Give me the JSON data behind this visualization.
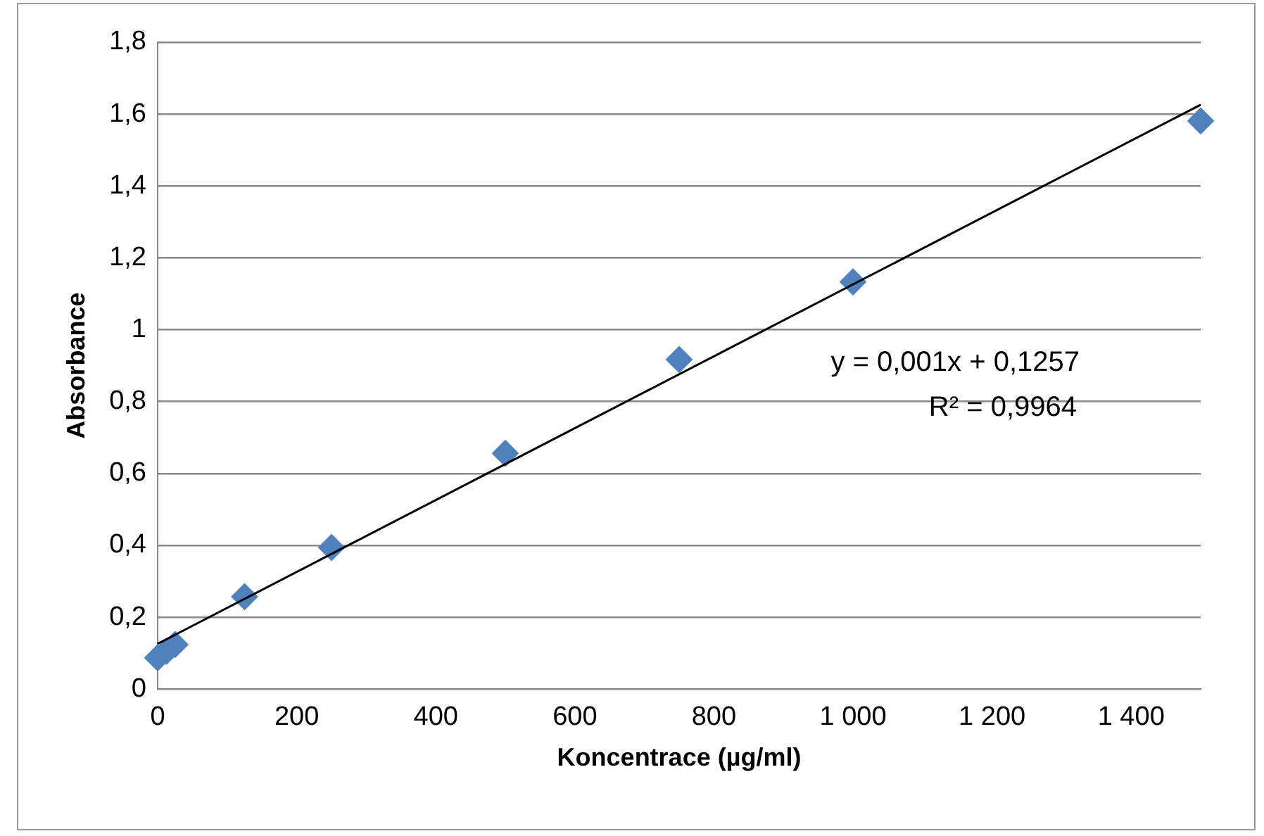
{
  "chart_data": {
    "type": "scatter",
    "xlabel": "Koncentrace (µg/ml)",
    "ylabel": "Absorbance",
    "series": [
      {
        "color": "#4f81bd",
        "marker": "diamond",
        "x": [
          0,
          12.5,
          25,
          125,
          250,
          500,
          750,
          1000,
          1500
        ],
        "values": [
          0.087,
          0.105,
          0.124,
          0.257,
          0.394,
          0.656,
          0.917,
          1.133,
          1.581
        ]
      },
      {
        "type": "line",
        "color": "#000000",
        "marker": "none",
        "x": [
          0,
          1500
        ],
        "values": [
          0.126,
          1.626
        ]
      }
    ],
    "xlim": [
      0,
      1500
    ],
    "xticks": [
      0,
      200,
      400,
      600,
      800,
      {
        "value": 1000,
        "label": "1 000"
      },
      {
        "value": 1200,
        "label": "1 200"
      },
      {
        "value": 1400,
        "label": "1 400"
      }
    ],
    "ylim": [
      0,
      1.8
    ],
    "yticks": [
      0,
      {
        "value": 0.2,
        "label": "0,2"
      },
      {
        "value": 0.4,
        "label": "0,4"
      },
      {
        "value": 0.6,
        "label": "0,6"
      },
      {
        "value": 0.8,
        "label": "0,8"
      },
      1,
      {
        "value": 1.2,
        "label": "1,2"
      },
      {
        "value": 1.4,
        "label": "1,4"
      },
      {
        "value": 1.6,
        "label": "1,6"
      },
      {
        "value": 1.8,
        "label": "1,8"
      }
    ],
    "grid": "y",
    "legend": false,
    "annotations": [
      "y = 0,001x + 0,1257",
      "R² = 0,9964"
    ]
  }
}
